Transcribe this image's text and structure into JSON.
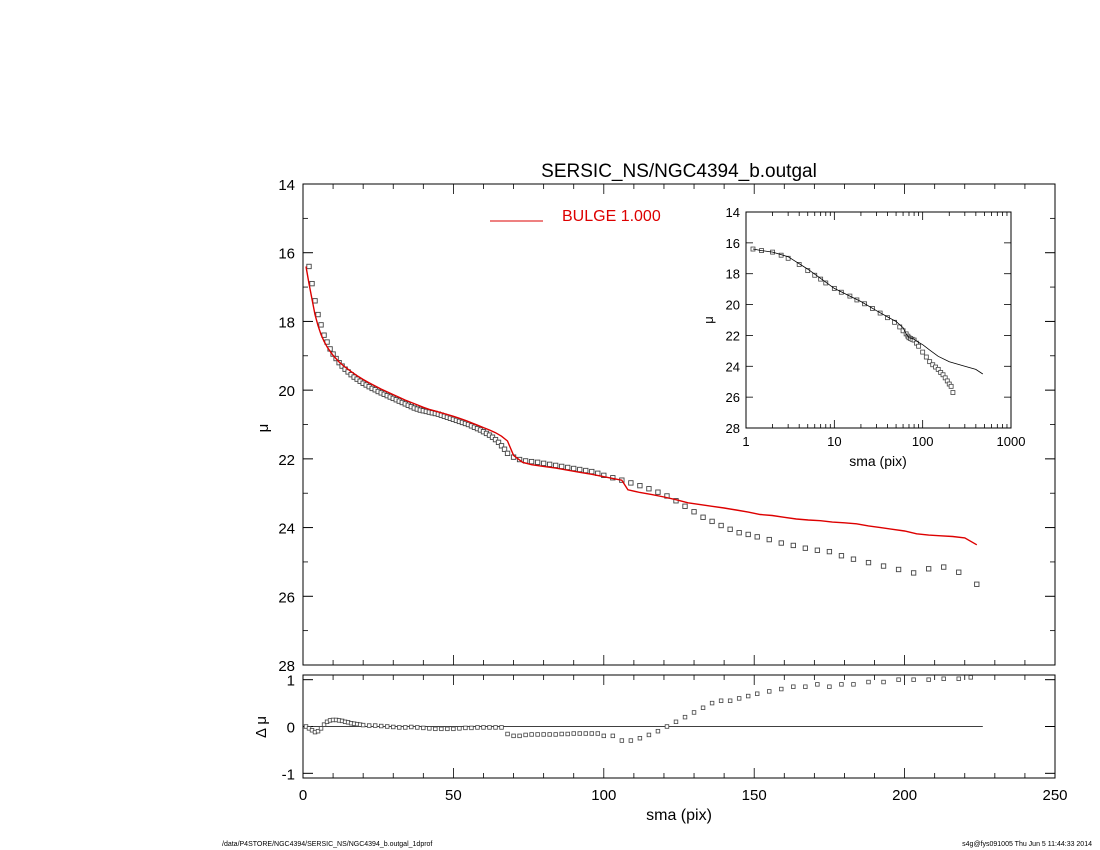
{
  "chart_data": [
    {
      "type": "scatter",
      "title": "SERSIC_NS/NGC4394_b.outgal",
      "xlabel": "",
      "ylabel": "μ",
      "xlim": [
        0,
        250
      ],
      "ylim": [
        28,
        14
      ],
      "y_reversed": true,
      "yticks": [
        14,
        16,
        18,
        20,
        22,
        24,
        26,
        28
      ],
      "ytick_labels": [
        "14",
        "16",
        "18",
        "20",
        "22",
        "24",
        "26",
        "28"
      ],
      "legend": {
        "label": "BULGE  1.000",
        "color": "#dd0000",
        "placement": "top-center"
      },
      "grid": false,
      "observed": {
        "x": [
          2,
          3,
          4,
          5,
          6,
          7,
          8,
          9,
          10,
          11,
          12,
          13,
          14,
          15,
          16,
          17,
          18,
          19,
          20,
          21,
          22,
          23,
          24,
          25,
          26,
          27,
          28,
          29,
          30,
          31,
          32,
          33,
          34,
          35,
          36,
          37,
          38,
          39,
          40,
          41,
          42,
          43,
          44,
          45,
          46,
          47,
          48,
          49,
          50,
          51,
          52,
          53,
          54,
          55,
          56,
          57,
          58,
          59,
          60,
          61,
          62,
          63,
          64,
          65,
          66,
          67,
          68,
          70,
          72,
          74,
          76,
          78,
          80,
          82,
          84,
          86,
          88,
          90,
          92,
          94,
          96,
          98,
          100,
          103,
          106,
          109,
          112,
          115,
          118,
          121,
          124,
          127,
          130,
          133,
          136,
          139,
          142,
          145,
          148,
          151,
          155,
          159,
          163,
          167,
          171,
          175,
          179,
          183,
          188,
          193,
          198,
          203,
          208,
          213,
          218,
          224
        ],
        "y": [
          16.4,
          16.9,
          17.4,
          17.8,
          18.1,
          18.4,
          18.6,
          18.8,
          18.95,
          19.08,
          19.2,
          19.3,
          19.39,
          19.47,
          19.55,
          19.62,
          19.68,
          19.74,
          19.8,
          19.85,
          19.9,
          19.95,
          19.99,
          20.04,
          20.08,
          20.12,
          20.16,
          20.2,
          20.24,
          20.28,
          20.32,
          20.36,
          20.4,
          20.44,
          20.48,
          20.52,
          20.55,
          20.58,
          20.6,
          20.62,
          20.64,
          20.66,
          20.68,
          20.7,
          20.73,
          20.76,
          20.79,
          20.82,
          20.85,
          20.88,
          20.91,
          20.94,
          20.97,
          21.0,
          21.04,
          21.08,
          21.12,
          21.16,
          21.21,
          21.26,
          21.31,
          21.37,
          21.44,
          21.52,
          21.62,
          21.72,
          21.84,
          21.95,
          22.02,
          22.06,
          22.08,
          22.1,
          22.13,
          22.16,
          22.19,
          22.22,
          22.25,
          22.28,
          22.31,
          22.34,
          22.37,
          22.42,
          22.48,
          22.55,
          22.62,
          22.7,
          22.78,
          22.87,
          22.97,
          23.08,
          23.22,
          23.38,
          23.54,
          23.7,
          23.82,
          23.94,
          24.05,
          24.15,
          24.2,
          24.27,
          24.35,
          24.45,
          24.52,
          24.6,
          24.66,
          24.7,
          24.82,
          24.92,
          25.02,
          25.12,
          25.22,
          25.32,
          25.2,
          25.15,
          25.3,
          25.65
        ]
      },
      "model_bulge": {
        "name": "BULGE  1.000",
        "color": "#dd0000",
        "x": [
          1,
          2,
          3,
          4,
          5,
          6,
          7,
          8,
          9,
          10,
          12,
          14,
          16,
          18,
          20,
          22,
          24,
          26,
          28,
          30,
          32,
          34,
          36,
          38,
          40,
          42,
          44,
          46,
          48,
          50,
          52,
          54,
          56,
          58,
          60,
          62,
          64,
          66,
          68,
          70,
          73,
          76,
          80,
          84,
          88,
          92,
          96,
          100,
          104,
          106,
          108,
          112,
          116,
          120,
          124,
          128,
          132,
          136,
          140,
          144,
          148,
          152,
          156,
          160,
          164,
          168,
          172,
          176,
          180,
          184,
          188,
          192,
          196,
          200,
          204,
          208,
          212,
          216,
          220,
          224
        ],
        "y": [
          16.4,
          16.9,
          17.35,
          17.8,
          18.12,
          18.38,
          18.58,
          18.74,
          18.87,
          18.99,
          19.18,
          19.33,
          19.46,
          19.58,
          19.69,
          19.79,
          19.88,
          19.97,
          20.05,
          20.13,
          20.21,
          20.29,
          20.36,
          20.43,
          20.5,
          20.56,
          20.61,
          20.66,
          20.71,
          20.76,
          20.82,
          20.88,
          20.95,
          21.02,
          21.09,
          21.16,
          21.24,
          21.34,
          21.48,
          21.9,
          22.1,
          22.17,
          22.22,
          22.27,
          22.33,
          22.39,
          22.45,
          22.52,
          22.59,
          22.62,
          22.9,
          22.98,
          23.04,
          23.11,
          23.19,
          23.28,
          23.33,
          23.38,
          23.43,
          23.49,
          23.55,
          23.62,
          23.65,
          23.7,
          23.75,
          23.78,
          23.8,
          23.84,
          23.86,
          23.89,
          23.95,
          24.0,
          24.05,
          24.1,
          24.18,
          24.22,
          24.24,
          24.26,
          24.3,
          24.5
        ]
      }
    },
    {
      "type": "scatter",
      "title": "",
      "xlabel": "sma (pix)",
      "ylabel": "Δ μ",
      "xlim": [
        0,
        250
      ],
      "ylim": [
        -1.1,
        1.1
      ],
      "xticks": [
        0,
        50,
        100,
        150,
        200,
        250
      ],
      "xtick_labels": [
        "0",
        "50",
        "100",
        "150",
        "200",
        "250"
      ],
      "yticks": [
        -1,
        0,
        1
      ],
      "ytick_labels": [
        "-1",
        "0",
        "1"
      ],
      "zero_line": {
        "from": 0,
        "to": 226
      },
      "grid": false,
      "residual": {
        "x": [
          1,
          2,
          3,
          4,
          5,
          6,
          7,
          8,
          9,
          10,
          11,
          12,
          13,
          14,
          15,
          16,
          17,
          18,
          19,
          20,
          22,
          24,
          26,
          28,
          30,
          32,
          34,
          36,
          38,
          40,
          42,
          44,
          46,
          48,
          50,
          52,
          54,
          56,
          58,
          60,
          62,
          64,
          66,
          68,
          70,
          72,
          74,
          76,
          78,
          80,
          82,
          84,
          86,
          88,
          90,
          92,
          94,
          96,
          98,
          100,
          103,
          106,
          109,
          112,
          115,
          118,
          121,
          124,
          127,
          130,
          133,
          136,
          139,
          142,
          145,
          148,
          151,
          155,
          159,
          163,
          167,
          171,
          175,
          179,
          183,
          188,
          193,
          198,
          203,
          208,
          213,
          218,
          222
        ],
        "y": [
          0.0,
          -0.04,
          -0.08,
          -0.12,
          -0.1,
          -0.04,
          0.04,
          0.1,
          0.13,
          0.14,
          0.14,
          0.13,
          0.12,
          0.1,
          0.09,
          0.07,
          0.06,
          0.05,
          0.04,
          0.03,
          0.02,
          0.02,
          0.01,
          0.0,
          -0.01,
          -0.02,
          -0.02,
          -0.01,
          -0.02,
          -0.03,
          -0.04,
          -0.05,
          -0.05,
          -0.05,
          -0.05,
          -0.04,
          -0.03,
          -0.03,
          -0.02,
          -0.02,
          -0.02,
          -0.02,
          -0.02,
          -0.16,
          -0.2,
          -0.2,
          -0.18,
          -0.17,
          -0.17,
          -0.17,
          -0.17,
          -0.17,
          -0.16,
          -0.16,
          -0.15,
          -0.15,
          -0.15,
          -0.15,
          -0.15,
          -0.2,
          -0.2,
          -0.3,
          -0.3,
          -0.25,
          -0.18,
          -0.1,
          0.0,
          0.1,
          0.2,
          0.3,
          0.4,
          0.5,
          0.55,
          0.55,
          0.6,
          0.65,
          0.7,
          0.75,
          0.8,
          0.85,
          0.85,
          0.9,
          0.85,
          0.9,
          0.9,
          0.95,
          0.95,
          1.0,
          1.0,
          1.0,
          1.02,
          1.02,
          1.05
        ]
      }
    },
    {
      "type": "line",
      "title": "",
      "xlabel": "sma (pix)",
      "ylabel": "μ",
      "x_scale": "log",
      "xlim": [
        1,
        1000
      ],
      "ylim": [
        28,
        14
      ],
      "y_reversed": true,
      "xticks": [
        1,
        10,
        100,
        1000
      ],
      "xtick_labels": [
        "1",
        "10",
        "100",
        "1000"
      ],
      "yticks": [
        14,
        16,
        18,
        20,
        22,
        24,
        26,
        28
      ],
      "ytick_labels": [
        "14",
        "16",
        "18",
        "20",
        "22",
        "24",
        "26",
        "28"
      ],
      "grid": false,
      "observed": {
        "x": [
          1.2,
          1.5,
          2,
          2.5,
          3,
          4,
          5,
          6,
          7,
          8,
          10,
          12,
          15,
          18,
          22,
          27,
          33,
          40,
          48,
          55,
          60,
          65,
          68,
          70,
          73,
          76,
          80,
          85,
          90,
          100,
          110,
          120,
          130,
          140,
          150,
          160,
          170,
          180,
          190,
          200,
          210,
          220
        ],
        "y": [
          16.4,
          16.5,
          16.6,
          16.8,
          17.0,
          17.4,
          17.8,
          18.1,
          18.35,
          18.6,
          18.95,
          19.2,
          19.45,
          19.7,
          19.95,
          20.25,
          20.55,
          20.85,
          21.15,
          21.45,
          21.7,
          21.9,
          22.05,
          22.15,
          22.2,
          22.25,
          22.3,
          22.5,
          22.7,
          23.08,
          23.4,
          23.7,
          23.9,
          24.05,
          24.2,
          24.4,
          24.55,
          24.75,
          24.95,
          25.15,
          25.3,
          25.7
        ]
      },
      "model": {
        "x": [
          1.2,
          1.5,
          2,
          3,
          5,
          8,
          10,
          15,
          20,
          30,
          40,
          50,
          60,
          65,
          70,
          80,
          90,
          100,
          120,
          150,
          200,
          300,
          400,
          480
        ],
        "y": [
          16.4,
          16.5,
          16.6,
          16.9,
          17.7,
          18.55,
          18.95,
          19.45,
          19.8,
          20.4,
          20.8,
          21.1,
          21.5,
          21.9,
          22.15,
          22.25,
          22.45,
          22.6,
          22.95,
          23.35,
          23.7,
          24.0,
          24.2,
          24.5
        ]
      }
    }
  ],
  "footer": {
    "path": "/data/P4STORE/NGC4394/SERSIC_NS/NGC4394_b.outgal_1dprof",
    "stamp": "s4g@fys091005  Thu Jun  5 11:44:33 2014"
  }
}
